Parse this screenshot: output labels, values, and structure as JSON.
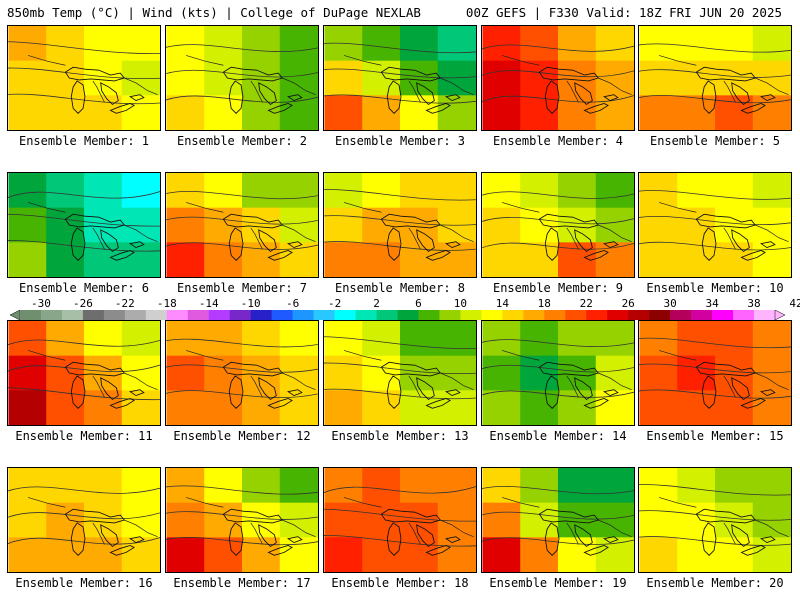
{
  "header": {
    "left": "850mb Temp (°C) | Wind (kts) | College of DuPage NEXLAB",
    "right": "00Z GEFS | F330 Valid: 18Z FRI JUN 20 2025"
  },
  "label_prefix": "Ensemble Member: ",
  "members": [
    {
      "label": "Ensemble Member: 1",
      "temps": [
        16,
        15,
        13,
        12,
        14,
        14,
        13,
        11,
        15,
        15,
        14,
        12
      ]
    },
    {
      "label": "Ensemble Member: 2",
      "temps": [
        12,
        10,
        8,
        7,
        13,
        11,
        8,
        6,
        14,
        12,
        9,
        6
      ]
    },
    {
      "label": "Ensemble Member: 3",
      "temps": [
        9,
        6,
        4,
        3,
        14,
        10,
        6,
        4,
        21,
        17,
        12,
        9
      ]
    },
    {
      "label": "Ensemble Member: 4",
      "temps": [
        23,
        20,
        17,
        15,
        25,
        22,
        18,
        16,
        24,
        22,
        19,
        17
      ]
    },
    {
      "label": "Ensemble Member: 5",
      "temps": [
        12,
        13,
        12,
        11,
        14,
        15,
        15,
        14,
        18,
        19,
        20,
        19
      ]
    },
    {
      "label": "Ensemble Member: 6",
      "temps": [
        5,
        2,
        0,
        -1,
        7,
        4,
        1,
        0,
        8,
        5,
        3,
        2
      ]
    },
    {
      "label": "Ensemble Member: 7",
      "temps": [
        14,
        12,
        9,
        8,
        18,
        16,
        14,
        11,
        22,
        19,
        17,
        15
      ]
    },
    {
      "label": "Ensemble Member: 8",
      "temps": [
        10,
        13,
        14,
        14,
        15,
        16,
        16,
        15,
        18,
        18,
        17,
        16
      ]
    },
    {
      "label": "Ensemble Member: 9",
      "temps": [
        12,
        10,
        8,
        6,
        15,
        13,
        10,
        8,
        14,
        15,
        21,
        18
      ]
    },
    {
      "label": "Ensemble Member: 10",
      "temps": [
        14,
        13,
        12,
        11,
        14,
        14,
        13,
        12,
        15,
        15,
        14,
        13
      ]
    },
    {
      "label": "Ensemble Member: 11",
      "temps": [
        20,
        16,
        12,
        11,
        25,
        20,
        16,
        13,
        26,
        21,
        18,
        15
      ]
    },
    {
      "label": "Ensemble Member: 12",
      "temps": [
        17,
        16,
        14,
        12,
        20,
        19,
        17,
        14,
        19,
        18,
        17,
        15
      ]
    },
    {
      "label": "Ensemble Member: 13",
      "temps": [
        12,
        10,
        7,
        6,
        14,
        12,
        9,
        8,
        16,
        14,
        11,
        10
      ]
    },
    {
      "label": "Ensemble Member: 14",
      "temps": [
        8,
        7,
        8,
        9,
        6,
        5,
        7,
        10,
        9,
        7,
        9,
        12
      ]
    },
    {
      "label": "Ensemble Member: 15",
      "temps": [
        19,
        20,
        20,
        18,
        21,
        22,
        21,
        19,
        20,
        21,
        20,
        19
      ]
    },
    {
      "label": "Ensemble Member: 16",
      "temps": [
        14,
        15,
        14,
        12,
        15,
        16,
        15,
        13,
        16,
        17,
        16,
        15
      ]
    },
    {
      "label": "Ensemble Member: 17",
      "temps": [
        16,
        13,
        9,
        7,
        19,
        17,
        12,
        10,
        24,
        21,
        16,
        13
      ]
    },
    {
      "label": "Ensemble Member: 18",
      "temps": [
        18,
        20,
        19,
        18,
        20,
        21,
        20,
        19,
        23,
        21,
        20,
        19
      ]
    },
    {
      "label": "Ensemble Member: 19",
      "temps": [
        15,
        9,
        5,
        4,
        18,
        11,
        7,
        6,
        24,
        18,
        12,
        10
      ]
    },
    {
      "label": "Ensemble Member: 20",
      "temps": [
        12,
        11,
        9,
        8,
        13,
        12,
        10,
        9,
        14,
        13,
        12,
        10
      ]
    }
  ],
  "colorbar": {
    "ticks": [
      "-30",
      "-26",
      "-22",
      "-18",
      "-14",
      "-10",
      "-6",
      "-2",
      "2",
      "6",
      "10",
      "14",
      "18",
      "22",
      "26",
      "30",
      "34",
      "38",
      "42"
    ],
    "colors": [
      "#6f8f6f",
      "#8aa68a",
      "#a6bfa6",
      "#6e6e6e",
      "#8c8c8c",
      "#acacac",
      "#cfcfcf",
      "#ff8cff",
      "#e05ae0",
      "#b43cff",
      "#7828c8",
      "#2820c8",
      "#1e5aff",
      "#1e96ff",
      "#28c8ff",
      "#00ffff",
      "#00e6b4",
      "#00c878",
      "#00a63c",
      "#46b400",
      "#96d200",
      "#d2f000",
      "#ffff00",
      "#ffd700",
      "#ffaa00",
      "#ff8000",
      "#ff5000",
      "#ff2000",
      "#e00000",
      "#b40000",
      "#8c0000",
      "#b4005a",
      "#d200a0",
      "#ff00ff",
      "#ff64ff",
      "#ffb4ff"
    ]
  }
}
